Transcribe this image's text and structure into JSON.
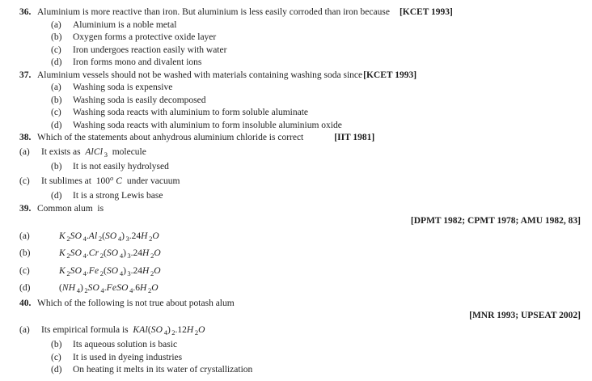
{
  "page": {
    "background_color": "#ffffff",
    "text_color": "#1e1e1e"
  },
  "questions": [
    {
      "number": "36.",
      "text": "Aluminium is more reactive than iron. But aluminium is less easily corroded than iron because",
      "tag": "[KCET 1993]",
      "tag_placement": "inline",
      "options": [
        {
          "label": "(a)",
          "text": "Aluminium is a noble metal"
        },
        {
          "label": "(b)",
          "text": "Oxygen forms a protective oxide layer"
        },
        {
          "label": "(c)",
          "text": "Iron undergoes reaction easily with water"
        },
        {
          "label": "(d)",
          "text": "Iron forms mono and divalent ions"
        }
      ]
    },
    {
      "number": "37.",
      "text": "Aluminium vessels should not be washed with materials containing washing soda since",
      "tag": "[KCET 1993]",
      "tag_placement": "inline",
      "options": [
        {
          "label": "(a)",
          "text": "Washing soda is expensive"
        },
        {
          "label": "(b)",
          "text": "Washing soda is easily decomposed"
        },
        {
          "label": "(c)",
          "text": "Washing soda reacts with aluminium to form soluble aluminate"
        },
        {
          "label": "(d)",
          "text": "Washing soda reacts with aluminium to form insoluble aluminium oxide"
        }
      ]
    },
    {
      "number": "38.",
      "text": "Which of the statements about anhydrous aluminium chloride is correct",
      "tag": "[IIT 1981]",
      "tag_placement": "inline",
      "options": [
        {
          "label": "(a)",
          "text": "It exists as  $AlCl_3$  molecule"
        },
        {
          "label": "(b)",
          "text": "It is not easily hydrolysed"
        },
        {
          "label": "(c)",
          "text": "It sublimes at  $100^o C$  under vacuum"
        },
        {
          "label": "(d)",
          "text": "It is a strong Lewis base"
        }
      ]
    },
    {
      "number": "39.",
      "text": "Common alum  is",
      "tag": "[DPMT 1982; CPMT 1978; AMU 1982, 83]",
      "tag_placement": "own-line-right",
      "options": [
        {
          "label": "(a)",
          "text": "$K_2SO_4.Al_2(SO_4)_3.24H_2O$"
        },
        {
          "label": "(b)",
          "text": "$K_2SO_4.Cr_2(SO_4)_3.24H_2O$"
        },
        {
          "label": "(c)",
          "text": "$K_2SO_4.Fe_2(SO_4)_3.24H_2O$"
        },
        {
          "label": "(d)",
          "text": "$(NH_4)_2SO_4.FeSO_4.6H_2O$"
        }
      ]
    },
    {
      "number": "40.",
      "text": "Which of the following is not true about potash alum",
      "tag": "[MNR 1993; UPSEAT 2002]",
      "tag_placement": "own-line-right",
      "options": [
        {
          "label": "(a)",
          "text": "Its empirical formula is  $KAl(SO_4)_2.12H_2O$"
        },
        {
          "label": "(b)",
          "text": "Its aqueous solution is basic"
        },
        {
          "label": "(c)",
          "text": "It is used in dyeing industries"
        },
        {
          "label": "(d)",
          "text": "On heating it melts in its water of crystallization"
        }
      ]
    }
  ]
}
